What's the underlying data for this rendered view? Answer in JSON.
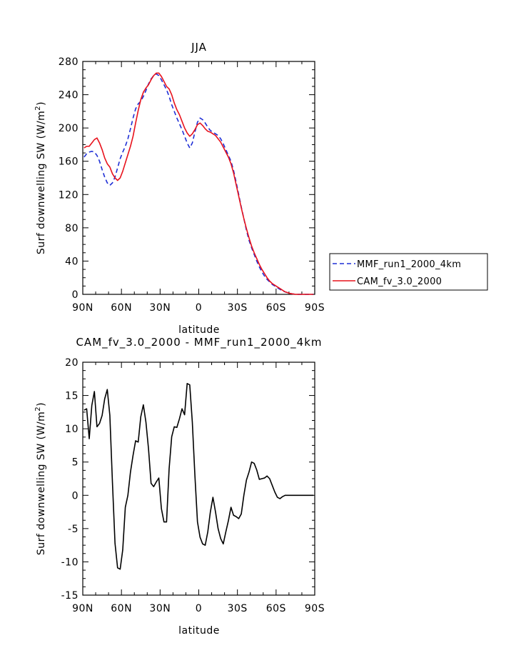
{
  "chart_data": [
    {
      "type": "line",
      "title": "JJA",
      "xlabel": "latitude",
      "ylabel": "Surf downwelling SW  (W/m",
      "ylabel_sup": "2",
      "ylabel_close": ")",
      "xlim": [
        90,
        -90
      ],
      "ylim": [
        0,
        280
      ],
      "xticks": [
        90,
        60,
        30,
        0,
        -30,
        -60,
        -90
      ],
      "xtick_labels": [
        "90N",
        "60N",
        "30N",
        "0",
        "30S",
        "60S",
        "90S"
      ],
      "yticks": [
        0,
        40,
        80,
        120,
        160,
        200,
        240,
        280
      ],
      "ytick_labels": [
        "0",
        "40",
        "80",
        "120",
        "160",
        "200",
        "240",
        "280"
      ],
      "legend": {
        "placement": "right"
      },
      "series": [
        {
          "name": "MMF_run1_2000_4km",
          "color": "#1f2fd6",
          "dash": "dashed",
          "x": [
            89,
            87,
            85,
            83,
            81,
            79,
            77,
            75,
            73,
            71,
            69,
            67,
            65,
            63,
            61,
            59,
            57,
            55,
            53,
            51,
            49,
            47,
            45,
            43,
            41,
            39,
            37,
            35,
            33,
            31,
            29,
            27,
            25,
            23,
            21,
            19,
            17,
            15,
            13,
            11,
            9,
            7,
            5,
            3,
            1,
            -1,
            -3,
            -5,
            -7,
            -9,
            -11,
            -13,
            -15,
            -17,
            -19,
            -21,
            -23,
            -25,
            -27,
            -29,
            -31,
            -33,
            -35,
            -37,
            -39,
            -41,
            -43,
            -45,
            -47,
            -49,
            -51,
            -53,
            -55,
            -57,
            -59,
            -61,
            -63,
            -65,
            -67,
            -69,
            -71,
            -73,
            -75,
            -77,
            -79,
            -81,
            -83,
            -85,
            -87,
            -89
          ],
          "y": [
            165,
            169,
            171,
            172,
            171,
            167,
            160,
            150,
            141,
            134,
            131,
            134,
            141,
            152,
            163,
            171,
            178,
            187,
            199,
            212,
            223,
            229,
            232,
            238,
            245,
            253,
            259,
            263,
            265,
            263,
            258,
            252,
            246,
            238,
            228,
            220,
            212,
            205,
            198,
            190,
            182,
            176,
            182,
            195,
            207,
            212,
            210,
            206,
            201,
            197,
            195,
            193,
            191,
            187,
            181,
            174,
            167,
            160,
            149,
            135,
            120,
            105,
            91,
            77,
            65,
            56,
            48,
            40,
            33,
            27,
            22,
            18,
            15,
            12,
            10,
            8,
            6,
            4,
            3,
            2,
            1,
            0.5,
            0,
            0,
            0,
            0,
            0,
            0,
            0,
            0
          ]
        },
        {
          "name": "CAM_fv_3.0_2000",
          "color": "#e8121c",
          "dash": "solid",
          "x": [
            89,
            87,
            85,
            83,
            81,
            79,
            77,
            75,
            73,
            71,
            69,
            67,
            65,
            63,
            61,
            59,
            57,
            55,
            53,
            51,
            49,
            47,
            45,
            43,
            41,
            39,
            37,
            35,
            33,
            31,
            29,
            27,
            25,
            23,
            21,
            19,
            17,
            15,
            13,
            11,
            9,
            7,
            5,
            3,
            1,
            -1,
            -3,
            -5,
            -7,
            -9,
            -11,
            -13,
            -15,
            -17,
            -19,
            -21,
            -23,
            -25,
            -27,
            -29,
            -31,
            -33,
            -35,
            -37,
            -39,
            -41,
            -43,
            -45,
            -47,
            -49,
            -51,
            -53,
            -55,
            -57,
            -59,
            -61,
            -63,
            -65,
            -67,
            -69,
            -71,
            -73,
            -75,
            -77,
            -79,
            -81,
            -83,
            -85,
            -87,
            -89
          ],
          "y": [
            176,
            178,
            178,
            182,
            186,
            188,
            182,
            174,
            164,
            157,
            153,
            145,
            140,
            137,
            140,
            148,
            158,
            168,
            178,
            190,
            206,
            221,
            234,
            243,
            248,
            252,
            258,
            263,
            266,
            266,
            262,
            256,
            250,
            247,
            240,
            230,
            222,
            216,
            208,
            200,
            194,
            190,
            193,
            198,
            204,
            206,
            203,
            199,
            196,
            195,
            193,
            191,
            187,
            183,
            177,
            171,
            165,
            157,
            146,
            132,
            118,
            104,
            91,
            79,
            68,
            58,
            50,
            43,
            36,
            30,
            25,
            20,
            16,
            13,
            11,
            9,
            7,
            5,
            3,
            2,
            1,
            0.5,
            0,
            0,
            0,
            0,
            0,
            0,
            0,
            0
          ]
        }
      ]
    },
    {
      "type": "line",
      "title": "CAM_fv_3.0_2000  -  MMF_run1_2000_4km",
      "xlabel": "latitude",
      "ylabel": "Surf downwelling SW  (W/m",
      "ylabel_sup": "2",
      "ylabel_close": ")",
      "xlim": [
        90,
        -90
      ],
      "ylim": [
        -15,
        20
      ],
      "xticks": [
        90,
        60,
        30,
        0,
        -30,
        -60,
        -90
      ],
      "xtick_labels": [
        "90N",
        "60N",
        "30N",
        "0",
        "30S",
        "60S",
        "90S"
      ],
      "yticks": [
        -15,
        -10,
        -5,
        0,
        5,
        10,
        15,
        20
      ],
      "ytick_labels": [
        "-15",
        "-10",
        "-5",
        "0",
        "5",
        "10",
        "15",
        "20"
      ],
      "series": [
        {
          "color": "#000000",
          "dash": "solid",
          "x": [
            89,
            87,
            85,
            83,
            81,
            79,
            77,
            75,
            73,
            71,
            69,
            67,
            65,
            63,
            61,
            59,
            57,
            55,
            53,
            51,
            49,
            47,
            45,
            43,
            41,
            39,
            37,
            35,
            33,
            31,
            29,
            27,
            25,
            23,
            21,
            19,
            17,
            15,
            13,
            11,
            9,
            7,
            5,
            3,
            1,
            -1,
            -3,
            -5,
            -7,
            -9,
            -11,
            -13,
            -15,
            -17,
            -19,
            -21,
            -23,
            -25,
            -27,
            -29,
            -31,
            -33,
            -35,
            -37,
            -39,
            -41,
            -43,
            -45,
            -47,
            -49,
            -51,
            -53,
            -55,
            -57,
            -59,
            -61,
            -63,
            -65,
            -67,
            -69,
            -71,
            -73,
            -75,
            -77,
            -79,
            -81,
            -83,
            -85,
            -87,
            -89
          ],
          "y": [
            12.8,
            13,
            8.5,
            13.5,
            15.6,
            10.3,
            10.8,
            12,
            14.5,
            15.9,
            12,
            2,
            -7.2,
            -10.9,
            -11.1,
            -8.2,
            -1.8,
            0,
            3.5,
            6,
            8.2,
            8,
            11.8,
            13.6,
            11,
            7,
            1.8,
            1.3,
            2,
            2.6,
            -2,
            -4,
            -4,
            4,
            8.8,
            10.3,
            10.2,
            11.5,
            13,
            12.1,
            16.8,
            16.6,
            11,
            3,
            -4,
            -6.3,
            -7.3,
            -7.5,
            -5.5,
            -2.5,
            -0.3,
            -2.5,
            -5,
            -6.5,
            -7.3,
            -5.5,
            -3.8,
            -1.8,
            -3,
            -3.2,
            -3.5,
            -2.8,
            0,
            2.3,
            3.5,
            5,
            4.8,
            3.8,
            2.4,
            2.5,
            2.6,
            2.9,
            2.5,
            1.5,
            0.5,
            -0.3,
            -0.5,
            -0.2,
            0,
            0,
            0,
            0,
            0,
            0,
            0,
            0,
            0,
            0,
            0,
            0
          ]
        }
      ]
    }
  ]
}
